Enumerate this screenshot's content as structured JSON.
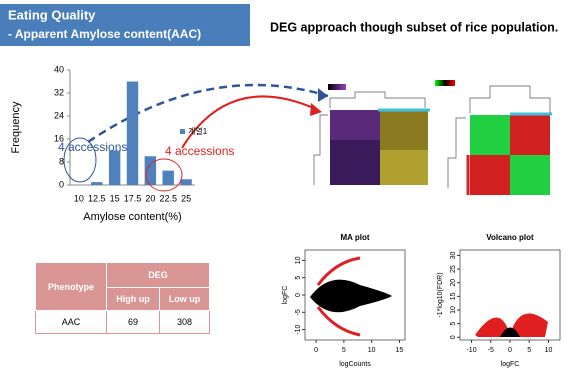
{
  "header": {
    "title": "Eating Quality",
    "subtitle": "- Apparent Amylose content(AAC)",
    "heading": "DEG approach though subset of rice population."
  },
  "chart_data": [
    {
      "type": "bar",
      "categories": [
        "10",
        "12.5",
        "15",
        "17.5",
        "20",
        "22.5",
        "25"
      ],
      "series": [
        {
          "name": "계열1",
          "color": "#4f81bd",
          "values": [
            0,
            1,
            12,
            36,
            10,
            5,
            2
          ]
        }
      ],
      "ylim": [
        0,
        40
      ],
      "yticks": [
        0,
        8,
        16,
        24,
        32,
        40
      ],
      "x_label": "Amylose content(%)",
      "y_label": "Frequency",
      "annotations": [
        "4 accessions",
        "4 accessions"
      ]
    },
    {
      "type": "scatter",
      "title": "MA plot",
      "x_label": "logCounts",
      "y_label": "logFC",
      "xlim": [
        -2,
        16
      ],
      "ylim": [
        -13,
        13
      ],
      "xticks": [
        0,
        5,
        10,
        15
      ],
      "yticks": [
        -10,
        -5,
        0,
        5,
        10
      ]
    },
    {
      "type": "scatter",
      "title": "Volcano plot",
      "x_label": "logFC",
      "y_label": "-1*log10(FDR)",
      "xlim": [
        -13,
        13
      ],
      "ylim": [
        -1,
        32
      ],
      "xticks": [
        -10,
        -5,
        0,
        5,
        10
      ],
      "yticks": [
        0,
        5,
        10,
        15,
        20,
        25,
        30
      ]
    }
  ],
  "table": {
    "header": [
      "Phenotype",
      "DEG",
      "High up",
      "Low up"
    ],
    "rows": [
      [
        "AAC",
        "69",
        "308"
      ]
    ]
  }
}
